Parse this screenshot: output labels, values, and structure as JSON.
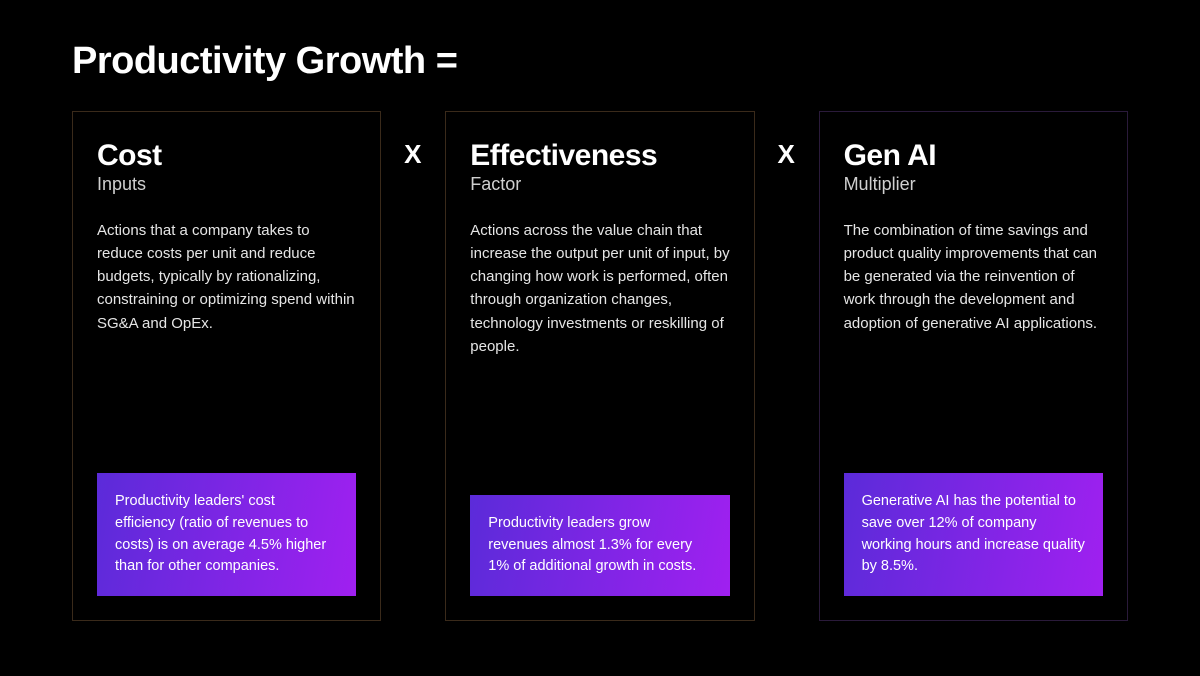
{
  "title": "Productivity Growth =",
  "operator": "X",
  "colors": {
    "background": "#000000",
    "text_primary": "#ffffff",
    "text_body": "#e5e5e5",
    "text_sub": "#d0d0d0",
    "card_border_warm": "#3a2a1a",
    "card_border_cool": "#2a1a3a",
    "gradient_left": "#5b2bd9",
    "gradient_right": "#a020f0"
  },
  "cards": [
    {
      "heading": "Cost",
      "sub": "Inputs",
      "body": "Actions that a company takes to reduce costs per unit and reduce budgets, typically by rationalizing, constraining or optimizing spend within SG&A and OpEx.",
      "callout": "Productivity leaders' cost efficiency (ratio of revenues to costs) is on average 4.5% higher than for other companies.",
      "border": "warm"
    },
    {
      "heading": "Effectiveness",
      "sub": "Factor",
      "body": "Actions across the value chain that increase the output per unit of input, by changing how work is performed, often through organization changes, technology investments or reskilling of people.",
      "callout": "Productivity leaders grow revenues almost 1.3% for every 1% of additional growth in costs.",
      "border": "warm"
    },
    {
      "heading": "Gen AI",
      "sub": "Multiplier",
      "body": "The combination of time savings and product quality improvements that can be generated via the reinvention of work through the development and adoption of generative AI applications.",
      "callout": "Generative AI has the potential to save over 12% of company working hours and increase quality by 8.5%.",
      "border": "cool"
    }
  ]
}
